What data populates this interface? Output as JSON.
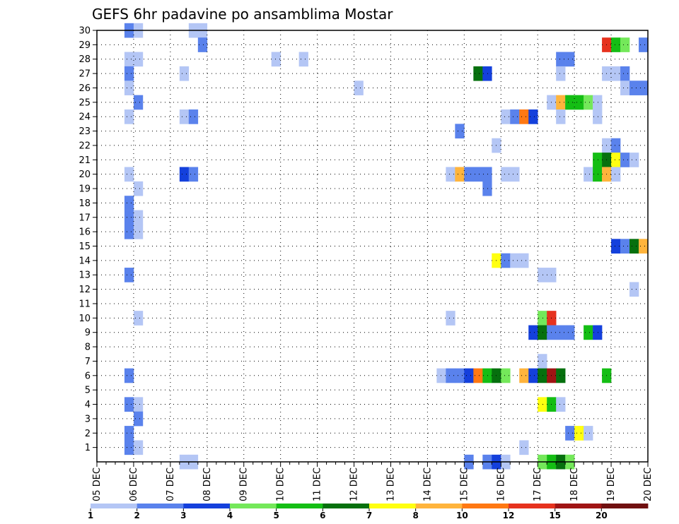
{
  "chart_data": {
    "type": "heatmap",
    "title": "GEFS 6hr padavine po ansamblima Mostar",
    "xlabel": "",
    "ylabel": "",
    "y_ticks": [
      "1",
      "2",
      "3",
      "4",
      "5",
      "6",
      "7",
      "8",
      "9",
      "10",
      "11",
      "12",
      "13",
      "14",
      "15",
      "16",
      "17",
      "18",
      "19",
      "20",
      "21",
      "22",
      "23",
      "24",
      "25",
      "26",
      "27",
      "28",
      "29",
      "30"
    ],
    "ylim": [
      0,
      30
    ],
    "x_ticks": [
      "05 DEC",
      "06 DEC",
      "07 DEC",
      "08 DEC",
      "09 DEC",
      "10 DEC",
      "11 DEC",
      "12 DEC",
      "13 DEC",
      "14 DEC",
      "15 DEC",
      "16 DEC",
      "17 DEC",
      "18 DEC",
      "19 DEC",
      "20 DEC"
    ],
    "x_steps_per_day": 4,
    "total_steps": 60,
    "grid": "dotted",
    "colorbar": {
      "labels": [
        "1",
        "2",
        "3",
        "4",
        "5",
        "6",
        "7",
        "8",
        "10",
        "12",
        "15",
        "20"
      ],
      "colors": [
        "#b4c6f5",
        "#5a82ec",
        "#1440dc",
        "#74e85a",
        "#14be14",
        "#06700e",
        "#ffff10",
        "#ffb43c",
        "#ff7812",
        "#e6321e",
        "#a01414",
        "#701010"
      ]
    },
    "cell_levels": [
      {
        "member": 30,
        "cells": [
          [
            3,
            1
          ],
          [
            4,
            0
          ],
          [
            10,
            0
          ],
          [
            11,
            0
          ]
        ]
      },
      {
        "member": 29,
        "cells": [
          [
            11,
            1
          ],
          [
            55,
            9
          ],
          [
            56,
            4
          ],
          [
            57,
            3
          ],
          [
            59,
            1
          ]
        ]
      },
      {
        "member": 28,
        "cells": [
          [
            3,
            0
          ],
          [
            4,
            0
          ],
          [
            19,
            0
          ],
          [
            22,
            0
          ],
          [
            50,
            1
          ],
          [
            51,
            1
          ]
        ]
      },
      {
        "member": 27,
        "cells": [
          [
            3,
            1
          ],
          [
            9,
            0
          ],
          [
            41,
            5
          ],
          [
            42,
            2
          ],
          [
            50,
            0
          ],
          [
            55,
            0
          ],
          [
            56,
            0
          ],
          [
            57,
            1
          ]
        ]
      },
      {
        "member": 26,
        "cells": [
          [
            3,
            0
          ],
          [
            28,
            0
          ],
          [
            57,
            0
          ],
          [
            58,
            1
          ],
          [
            59,
            1
          ]
        ]
      },
      {
        "member": 25,
        "cells": [
          [
            4,
            1
          ],
          [
            49,
            0
          ],
          [
            50,
            7
          ],
          [
            51,
            4
          ],
          [
            52,
            4
          ],
          [
            53,
            3
          ],
          [
            54,
            0
          ]
        ]
      },
      {
        "member": 24,
        "cells": [
          [
            3,
            0
          ],
          [
            9,
            0
          ],
          [
            10,
            1
          ],
          [
            44,
            0
          ],
          [
            45,
            1
          ],
          [
            46,
            8
          ],
          [
            47,
            2
          ],
          [
            50,
            0
          ],
          [
            54,
            0
          ]
        ]
      },
      {
        "member": 23,
        "cells": [
          [
            39,
            1
          ]
        ]
      },
      {
        "member": 22,
        "cells": [
          [
            43,
            0
          ],
          [
            55,
            0
          ],
          [
            56,
            1
          ]
        ]
      },
      {
        "member": 21,
        "cells": [
          [
            54,
            4
          ],
          [
            55,
            5
          ],
          [
            56,
            6
          ],
          [
            57,
            1
          ],
          [
            58,
            0
          ]
        ]
      },
      {
        "member": 20,
        "cells": [
          [
            3,
            0
          ],
          [
            9,
            2
          ],
          [
            10,
            1
          ],
          [
            38,
            0
          ],
          [
            39,
            7
          ],
          [
            40,
            1
          ],
          [
            41,
            1
          ],
          [
            42,
            1
          ],
          [
            44,
            0
          ],
          [
            45,
            0
          ],
          [
            53,
            0
          ],
          [
            54,
            4
          ],
          [
            55,
            7
          ],
          [
            56,
            0
          ]
        ]
      },
      {
        "member": 19,
        "cells": [
          [
            4,
            0
          ],
          [
            42,
            1
          ]
        ]
      },
      {
        "member": 18,
        "cells": [
          [
            3,
            1
          ]
        ]
      },
      {
        "member": 17,
        "cells": [
          [
            3,
            1
          ],
          [
            4,
            0
          ]
        ]
      },
      {
        "member": 16,
        "cells": [
          [
            3,
            1
          ],
          [
            4,
            0
          ]
        ]
      },
      {
        "member": 15,
        "cells": [
          [
            56,
            2
          ],
          [
            57,
            1
          ],
          [
            58,
            5
          ],
          [
            59,
            7
          ]
        ]
      },
      {
        "member": 14,
        "cells": [
          [
            43,
            6
          ],
          [
            44,
            1
          ],
          [
            45,
            0
          ],
          [
            46,
            0
          ]
        ]
      },
      {
        "member": 13,
        "cells": [
          [
            3,
            1
          ],
          [
            48,
            0
          ],
          [
            49,
            0
          ]
        ]
      },
      {
        "member": 12,
        "cells": [
          [
            58,
            0
          ]
        ]
      },
      {
        "member": 10,
        "cells": [
          [
            4,
            0
          ],
          [
            38,
            0
          ],
          [
            48,
            3
          ],
          [
            49,
            9
          ]
        ]
      },
      {
        "member": 9,
        "cells": [
          [
            47,
            2
          ],
          [
            48,
            5
          ],
          [
            49,
            1
          ],
          [
            50,
            1
          ],
          [
            51,
            1
          ],
          [
            53,
            4
          ],
          [
            54,
            2
          ]
        ]
      },
      {
        "member": 7,
        "cells": [
          [
            48,
            0
          ]
        ]
      },
      {
        "member": 6,
        "cells": [
          [
            3,
            1
          ],
          [
            37,
            0
          ],
          [
            38,
            1
          ],
          [
            39,
            1
          ],
          [
            40,
            2
          ],
          [
            41,
            8
          ],
          [
            42,
            4
          ],
          [
            43,
            5
          ],
          [
            44,
            3
          ],
          [
            46,
            7
          ],
          [
            47,
            2
          ],
          [
            48,
            5
          ],
          [
            49,
            10
          ],
          [
            50,
            5
          ],
          [
            55,
            4
          ]
        ]
      },
      {
        "member": 4,
        "cells": [
          [
            3,
            1
          ],
          [
            4,
            0
          ],
          [
            48,
            6
          ],
          [
            49,
            4
          ],
          [
            50,
            0
          ]
        ]
      },
      {
        "member": 3,
        "cells": [
          [
            4,
            1
          ]
        ]
      },
      {
        "member": 2,
        "cells": [
          [
            3,
            1
          ],
          [
            51,
            1
          ],
          [
            52,
            6
          ],
          [
            53,
            0
          ]
        ]
      },
      {
        "member": 1,
        "cells": [
          [
            3,
            1
          ],
          [
            4,
            0
          ],
          [
            46,
            0
          ]
        ]
      },
      {
        "member": 0,
        "cells": [
          [
            9,
            0
          ],
          [
            10,
            0
          ],
          [
            40,
            1
          ],
          [
            42,
            1
          ],
          [
            43,
            2
          ],
          [
            44,
            0
          ],
          [
            48,
            3
          ],
          [
            49,
            4
          ],
          [
            50,
            5
          ],
          [
            51,
            3
          ]
        ]
      }
    ]
  }
}
